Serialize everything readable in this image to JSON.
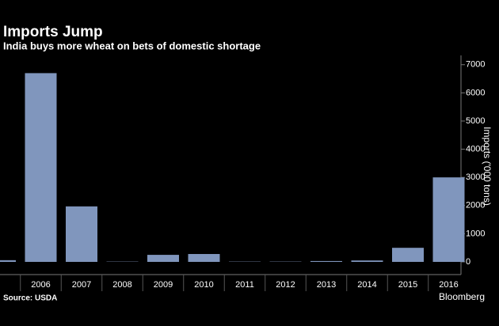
{
  "chart_data": {
    "type": "bar",
    "title": "Imports Jump",
    "subtitle": "India buys more wheat on bets of domestic shortage",
    "y_label": "Imports ('000 tons)",
    "source": "Source: USDA",
    "brand": "Bloomberg",
    "categories": [
      null,
      "2006",
      "2007",
      "2008",
      "2009",
      "2010",
      "2011",
      "2012",
      "2013",
      "2014",
      "2015",
      "2016"
    ],
    "values": [
      60,
      6700,
      1970,
      10,
      250,
      280,
      10,
      10,
      30,
      50,
      500,
      3000
    ],
    "color": "#8096bd",
    "ylim": [
      -450,
      7330
    ],
    "yticks": [
      0,
      1000,
      2000,
      3000,
      4000,
      5000,
      6000,
      7000
    ]
  }
}
